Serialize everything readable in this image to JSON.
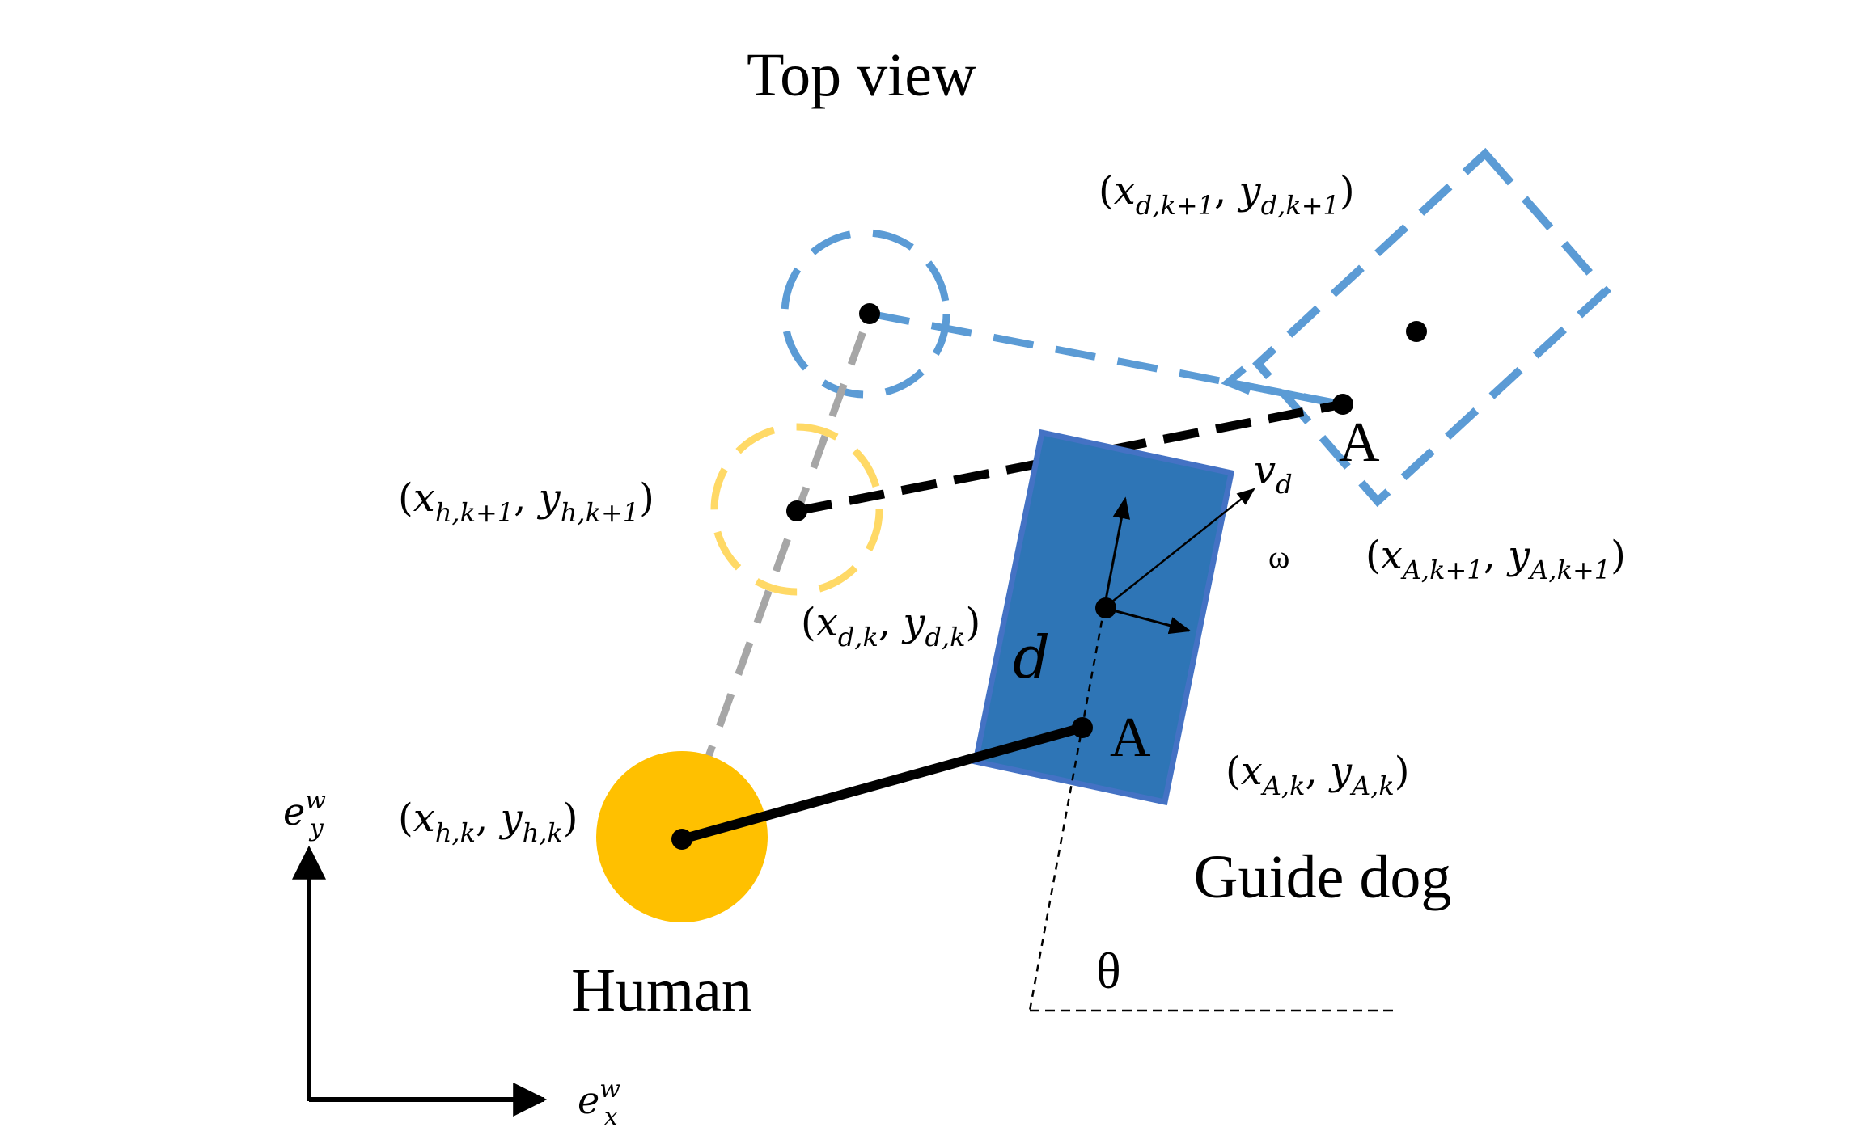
{
  "title": "Top view",
  "labels": {
    "human": "Human",
    "guide_dog": "Guide dog",
    "anchor_current": "A",
    "anchor_next": "A",
    "theta": "θ",
    "omega": "ω",
    "distance": "d"
  },
  "coordinates": {
    "human_k": {
      "base_x": "x",
      "sub_x": "h,k",
      "base_y": "y",
      "sub_y": "h,k"
    },
    "human_k1": {
      "base_x": "x",
      "sub_x": "h,k+1",
      "base_y": "y",
      "sub_y": "h,k+1"
    },
    "dog_k": {
      "base_x": "x",
      "sub_x": "d,k",
      "base_y": "y",
      "sub_y": "d,k"
    },
    "dog_k1": {
      "base_x": "x",
      "sub_x": "d,k+1",
      "base_y": "y",
      "sub_y": "d,k+1"
    },
    "anchor_k": {
      "base_x": "x",
      "sub_x": "A,k",
      "base_y": "y",
      "sub_y": "A,k"
    },
    "anchor_k1": {
      "base_x": "x",
      "sub_x": "A,k+1",
      "base_y": "y",
      "sub_y": "A,k+1"
    }
  },
  "velocity": {
    "base": "v",
    "sub": "d"
  },
  "axes": {
    "x": {
      "base": "e",
      "sup": "w",
      "sub": "x"
    },
    "y": {
      "base": "e",
      "sup": "w",
      "sub": "y"
    }
  },
  "colors": {
    "human_fill": "#FFC000",
    "human_next_stroke": "#FFD966",
    "dog_fill": "#2E75B6",
    "dog_stroke": "#4472C4",
    "dog_next_stroke": "#5B9BD5",
    "gray_dash": "#A6A6A6",
    "ink": "#000000"
  }
}
